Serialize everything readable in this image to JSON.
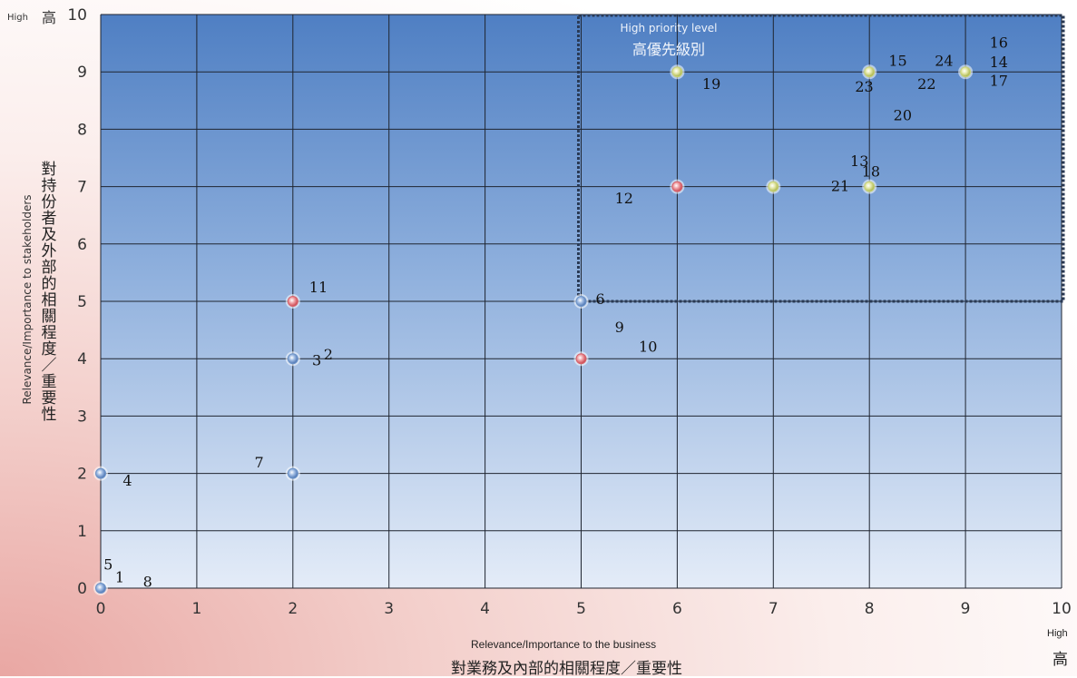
{
  "chart_data": {
    "type": "scatter",
    "xlim": [
      0,
      10
    ],
    "ylim": [
      0,
      10
    ],
    "xticks": [
      "0",
      "1",
      "2",
      "3",
      "4",
      "5",
      "6",
      "7",
      "8",
      "9",
      "10"
    ],
    "yticks": [
      "0",
      "1",
      "2",
      "3",
      "4",
      "5",
      "6",
      "7",
      "8",
      "9",
      "10"
    ],
    "grid": true,
    "xlabel_en": "Relevance/Importance to the business",
    "xlabel_cn": "對業務及內部的相關程度／重要性",
    "ylabel_en": "Relevance/Importance to stakeholders",
    "ylabel_cn": "對持份者及外部的相關程度／重要性",
    "x_high_en": "High",
    "x_high_cn": "高",
    "y_high_en": "High",
    "y_high_cn": "高",
    "region": {
      "label_en": "High priority level",
      "label_cn": "高優先級別",
      "x_range": [
        5,
        10
      ],
      "y_range": [
        5,
        10
      ]
    },
    "colors": {
      "blue": "#6d94c8",
      "red": "#d9636b",
      "yellow": "#c8d27a"
    },
    "points": [
      {
        "x": 0,
        "y": 0,
        "color": "blue"
      },
      {
        "x": 0,
        "y": 2,
        "color": "blue"
      },
      {
        "x": 2,
        "y": 2,
        "color": "blue"
      },
      {
        "x": 2,
        "y": 4,
        "color": "blue"
      },
      {
        "x": 2,
        "y": 5,
        "color": "red"
      },
      {
        "x": 5,
        "y": 4,
        "color": "red"
      },
      {
        "x": 5,
        "y": 5,
        "color": "blue"
      },
      {
        "x": 6,
        "y": 7,
        "color": "red"
      },
      {
        "x": 6,
        "y": 9,
        "color": "yellow"
      },
      {
        "x": 7,
        "y": 7,
        "color": "yellow"
      },
      {
        "x": 8,
        "y": 7,
        "color": "yellow"
      },
      {
        "x": 8,
        "y": 9,
        "color": "yellow"
      },
      {
        "x": 9,
        "y": 9,
        "color": "yellow"
      }
    ],
    "labels": [
      {
        "text": "1",
        "x": 0.15,
        "y": 0.2
      },
      {
        "text": "5",
        "x": 0.03,
        "y": 0.42
      },
      {
        "text": "8",
        "x": 0.44,
        "y": 0.12
      },
      {
        "text": "4",
        "x": 0.23,
        "y": 1.88
      },
      {
        "text": "7",
        "x": 1.6,
        "y": 2.2
      },
      {
        "text": "3",
        "x": 2.2,
        "y": 3.98
      },
      {
        "text": "2",
        "x": 2.32,
        "y": 4.08
      },
      {
        "text": "11",
        "x": 2.17,
        "y": 5.25
      },
      {
        "text": "6",
        "x": 5.15,
        "y": 5.05
      },
      {
        "text": "9",
        "x": 5.35,
        "y": 4.56
      },
      {
        "text": "10",
        "x": 5.6,
        "y": 4.22
      },
      {
        "text": "12",
        "x": 5.35,
        "y": 6.8
      },
      {
        "text": "19",
        "x": 6.26,
        "y": 8.8
      },
      {
        "text": "13",
        "x": 7.8,
        "y": 7.45
      },
      {
        "text": "18",
        "x": 7.92,
        "y": 7.27
      },
      {
        "text": "21",
        "x": 7.6,
        "y": 7.02
      },
      {
        "text": "20",
        "x": 8.25,
        "y": 8.25
      },
      {
        "text": "15",
        "x": 8.2,
        "y": 9.2
      },
      {
        "text": "23",
        "x": 7.85,
        "y": 8.75
      },
      {
        "text": "22",
        "x": 8.5,
        "y": 8.8
      },
      {
        "text": "24",
        "x": 8.68,
        "y": 9.2
      },
      {
        "text": "16",
        "x": 9.25,
        "y": 9.52
      },
      {
        "text": "14",
        "x": 9.25,
        "y": 9.18
      },
      {
        "text": "17",
        "x": 9.25,
        "y": 8.85
      }
    ]
  }
}
